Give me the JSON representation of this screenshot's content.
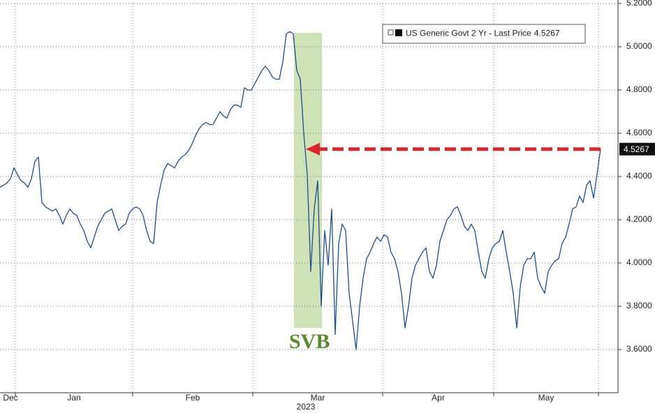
{
  "chart_data": {
    "type": "line",
    "annotation": "SVB",
    "xtick_year": "2023",
    "xlim": [
      0,
      177
    ],
    "xticks": [
      {
        "value": 0,
        "label": "Dec"
      },
      {
        "value": 4.4,
        "label": "Jan"
      },
      {
        "value": 38,
        "label": "Feb"
      },
      {
        "value": 72.4,
        "label": "Mar"
      },
      {
        "value": 109.6,
        "label": "Apr"
      },
      {
        "value": 141.4,
        "label": "May"
      },
      {
        "value": 171.4,
        "label": null
      }
    ],
    "ylim": [
      3.4,
      5.2
    ],
    "yticks": [
      {
        "value": 3.6,
        "label": "3.6000"
      },
      {
        "value": 3.8,
        "label": "3.8000"
      },
      {
        "value": 4.0,
        "label": "4.0000"
      },
      {
        "value": 4.2,
        "label": "4.2000"
      },
      {
        "value": 4.4,
        "label": "4.4000"
      },
      {
        "value": 4.6,
        "label": "4.6000"
      },
      {
        "value": 4.8,
        "label": "4.8000"
      },
      {
        "value": 5.0,
        "label": "5.0000"
      },
      {
        "value": 5.2,
        "label": "5.2000"
      }
    ],
    "grid": true,
    "legend": "top-right",
    "series": [
      {
        "name": "US Generic Govt 2 Yr - Last Price",
        "color": "#1f4e8c",
        "values": [
          4.35,
          4.36,
          4.37,
          4.39,
          4.44,
          4.41,
          4.38,
          4.37,
          4.35,
          4.39,
          4.47,
          4.49,
          4.28,
          4.26,
          4.25,
          4.24,
          4.25,
          4.22,
          4.18,
          4.22,
          4.25,
          4.23,
          4.22,
          4.18,
          4.15,
          4.1,
          4.07,
          4.12,
          4.17,
          4.2,
          4.23,
          4.24,
          4.25,
          4.2,
          4.15,
          4.17,
          4.18,
          4.23,
          4.25,
          4.26,
          4.25,
          4.22,
          4.15,
          4.1,
          4.09,
          4.28,
          4.36,
          4.43,
          4.46,
          4.45,
          4.44,
          4.47,
          4.49,
          4.5,
          4.52,
          4.55,
          4.59,
          4.62,
          4.64,
          4.65,
          4.64,
          4.64,
          4.67,
          4.7,
          4.68,
          4.67,
          4.71,
          4.73,
          4.73,
          4.72,
          4.81,
          4.8,
          4.8,
          4.83,
          4.86,
          4.89,
          4.91,
          4.89,
          4.86,
          4.85,
          4.85,
          4.93,
          5.06,
          5.07,
          5.06,
          4.89,
          4.85,
          4.6,
          4.41,
          3.96,
          4.25,
          4.38,
          3.8,
          4.15,
          3.99,
          4.25,
          3.67,
          4.09,
          4.18,
          4.15,
          3.86,
          3.73,
          3.6,
          3.8,
          3.93,
          4.02,
          4.05,
          4.09,
          4.12,
          4.1,
          4.13,
          4.12,
          4.05,
          4.02,
          3.96,
          3.86,
          3.7,
          3.8,
          3.93,
          3.99,
          4.02,
          4.05,
          4.07,
          3.96,
          3.93,
          3.99,
          4.1,
          4.15,
          4.2,
          4.22,
          4.25,
          4.26,
          4.22,
          4.17,
          4.15,
          4.18,
          4.15,
          4.05,
          3.96,
          3.93,
          4.02,
          4.07,
          4.09,
          4.1,
          4.15,
          4.05,
          3.96,
          3.86,
          3.7,
          3.89,
          3.99,
          4.02,
          4.02,
          4.05,
          3.93,
          3.89,
          3.86,
          3.96,
          3.99,
          4.01,
          4.02,
          4.09,
          4.12,
          4.18,
          4.25,
          4.26,
          4.31,
          4.28,
          4.36,
          4.38,
          4.3,
          4.41,
          4.5267
        ]
      }
    ]
  }
}
